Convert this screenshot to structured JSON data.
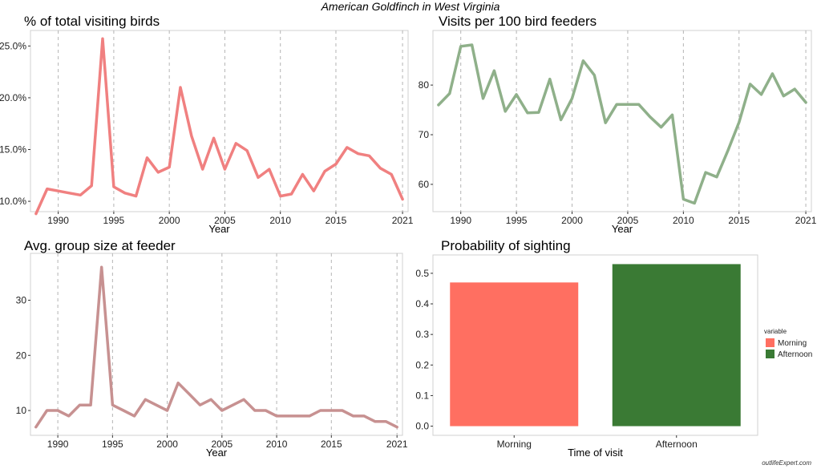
{
  "page_title": "American Goldfinch in West Virginia",
  "watermark": "outlifeExpert.com",
  "colors": {
    "percent_line": "#F08080",
    "visits_line": "#8FB08A",
    "group_line": "#C79191",
    "morning": "#FF6F61",
    "afternoon": "#3A7A34"
  },
  "chart_data": [
    {
      "type": "line",
      "title": "% of total visiting birds",
      "xlabel": "Year",
      "ylabel": "",
      "grid": "vertical dashed",
      "x": [
        1988,
        1989,
        1990,
        1991,
        1992,
        1993,
        1994,
        1995,
        1996,
        1997,
        1998,
        1999,
        2000,
        2001,
        2002,
        2003,
        2004,
        2005,
        2006,
        2007,
        2008,
        2009,
        2010,
        2011,
        2012,
        2013,
        2014,
        2015,
        2016,
        2017,
        2018,
        2019,
        2020,
        2021
      ],
      "series": [
        {
          "values": [
            8.8,
            11.2,
            11.0,
            10.8,
            10.6,
            11.5,
            25.7,
            11.4,
            10.8,
            10.5,
            14.2,
            12.8,
            13.3,
            21.0,
            16.3,
            13.1,
            16.1,
            13.1,
            15.6,
            14.9,
            12.3,
            13.1,
            10.5,
            10.7,
            12.6,
            11.0,
            12.9,
            13.6,
            15.2,
            14.6,
            14.4,
            13.2,
            12.6,
            10.2
          ]
        }
      ],
      "xlim": [
        1987.5,
        2021.5
      ],
      "ylim": [
        9.0,
        26.5
      ],
      "xticks": [
        1990,
        1995,
        2000,
        2005,
        2010,
        2015,
        2021
      ],
      "xtick_labels": [
        "1990",
        "1995",
        "2000",
        "2005",
        "2010",
        "2015",
        "2021"
      ],
      "yticks": [
        10,
        15,
        20,
        25
      ],
      "ytick_labels": [
        "10.0%",
        "15.0%",
        "20.0%",
        "25.0%"
      ]
    },
    {
      "type": "line",
      "title": "Visits per 100 bird feeders",
      "xlabel": "Year",
      "ylabel": "",
      "grid": "vertical dashed",
      "x": [
        1988,
        1989,
        1990,
        1991,
        1992,
        1993,
        1994,
        1995,
        1996,
        1997,
        1998,
        1999,
        2000,
        2001,
        2002,
        2003,
        2004,
        2005,
        2006,
        2007,
        2008,
        2009,
        2010,
        2011,
        2012,
        2013,
        2014,
        2015,
        2016,
        2017,
        2018,
        2019,
        2020,
        2021
      ],
      "series": [
        {
          "values": [
            76.0,
            78.3,
            87.8,
            88.1,
            77.3,
            82.9,
            74.7,
            78.1,
            74.4,
            74.5,
            81.2,
            73.0,
            77.3,
            84.9,
            82.0,
            72.4,
            76.1,
            76.1,
            76.1,
            73.6,
            71.5,
            74.0,
            57.0,
            56.2,
            62.4,
            61.5,
            66.8,
            72.5,
            80.2,
            78.1,
            82.3,
            77.8,
            79.2,
            76.5
          ]
        }
      ],
      "xlim": [
        1987.5,
        2021.5
      ],
      "ylim": [
        54.5,
        91.0
      ],
      "xticks": [
        1990,
        1995,
        2000,
        2005,
        2010,
        2015,
        2021
      ],
      "xtick_labels": [
        "1990",
        "1995",
        "2000",
        "2005",
        "2010",
        "2015",
        "2021"
      ],
      "yticks": [
        60,
        70,
        80
      ],
      "ytick_labels": [
        "60",
        "70",
        "80"
      ]
    },
    {
      "type": "line",
      "title": "Avg. group size at feeder",
      "xlabel": "Year",
      "ylabel": "",
      "grid": "vertical dashed",
      "x": [
        1988,
        1989,
        1990,
        1991,
        1992,
        1993,
        1994,
        1995,
        1996,
        1997,
        1998,
        1999,
        2000,
        2001,
        2002,
        2003,
        2004,
        2005,
        2006,
        2007,
        2008,
        2009,
        2010,
        2011,
        2012,
        2013,
        2014,
        2015,
        2016,
        2017,
        2018,
        2019,
        2020,
        2021
      ],
      "series": [
        {
          "values": [
            7,
            10,
            10,
            9,
            11,
            11,
            36,
            11,
            10,
            9,
            12,
            11,
            10,
            15,
            13,
            11,
            12,
            10,
            11,
            12,
            10,
            10,
            9,
            9,
            9,
            9,
            10,
            10,
            10,
            9,
            9,
            8,
            8,
            7
          ]
        }
      ],
      "xlim": [
        1987.5,
        2021.5
      ],
      "ylim": [
        5.5,
        38.5
      ],
      "xticks": [
        1990,
        1995,
        2000,
        2005,
        2010,
        2015,
        2021
      ],
      "xtick_labels": [
        "1990",
        "1995",
        "2000",
        "2005",
        "2010",
        "2015",
        "2021"
      ],
      "yticks": [
        10,
        20,
        30
      ],
      "ytick_labels": [
        "10",
        "20",
        "30"
      ]
    },
    {
      "type": "bar",
      "title": "Probability of sighting",
      "xlabel": "Time of visit",
      "ylabel": "",
      "categories": [
        "Morning",
        "Afternoon"
      ],
      "values": [
        0.47,
        0.53
      ],
      "ylim": [
        -0.03,
        0.56
      ],
      "yticks": [
        0.0,
        0.1,
        0.2,
        0.3,
        0.4,
        0.5
      ],
      "ytick_labels": [
        "0.0",
        "0.1",
        "0.2",
        "0.3",
        "0.4",
        "0.5"
      ],
      "legend": {
        "title": "variable",
        "position": "right",
        "entries": [
          "Morning",
          "Afternoon"
        ]
      }
    }
  ]
}
